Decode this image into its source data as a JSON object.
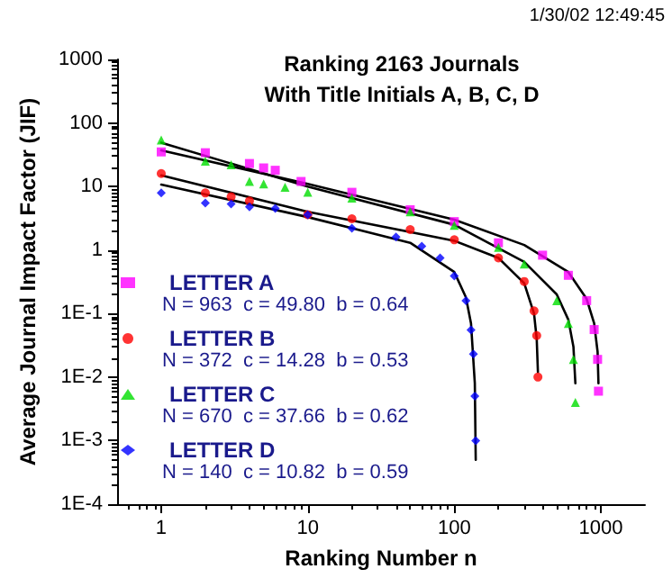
{
  "chart_data": {
    "type": "scatter",
    "title": "Ranking 2163 Journals\nWith Title Initials A, B, C, D",
    "xlabel": "Ranking Number n",
    "ylabel": "Average Journal Impact Factor (JIF)",
    "annotations": [
      "1/30/02 12:49:45",
      "N = 963  c = 49.80  b = 0.64",
      "N = 372  c = 14.28  b = 0.53",
      "N = 670  c = 37.66  b = 0.62",
      "N = 140  c = 10.82  b = 0.59"
    ],
    "log": "xy",
    "legend": "bottom left",
    "grid": false,
    "xlim": [
      0.5,
      2000
    ],
    "xticks": [
      1,
      10,
      100,
      1000
    ],
    "ylim": [
      0.0001,
      1000
    ],
    "yticks": [
      {
        "value": 0.0001,
        "label": "1E-4"
      },
      {
        "value": 0.001,
        "label": "1E-3"
      },
      {
        "value": 0.01,
        "label": "1E-2"
      },
      {
        "value": 0.1,
        "label": "1E-1"
      },
      1,
      10,
      100,
      1000
    ],
    "series": [
      {
        "name": "LETTER A",
        "color": "#ff00ff",
        "marker": "square",
        "x": [
          1,
          2,
          4,
          5,
          6,
          9,
          20,
          50,
          100,
          200,
          400,
          600,
          800,
          900,
          950,
          963
        ],
        "values": [
          35,
          34,
          23,
          19.6,
          18,
          12,
          8.1,
          4.3,
          2.8,
          1.3,
          0.83,
          0.4,
          0.16,
          0.056,
          0.019,
          0.006
        ]
      },
      {
        "name": "LETTER B",
        "color": "#ff0000",
        "marker": "circle",
        "x": [
          1,
          2,
          3,
          4,
          10,
          20,
          50,
          100,
          200,
          300,
          350,
          365,
          372
        ],
        "values": [
          16,
          7.9,
          6.9,
          5.9,
          3.6,
          3.1,
          2.1,
          1.45,
          0.75,
          0.32,
          0.11,
          0.045,
          0.01
        ]
      },
      {
        "name": "LETTER C",
        "color": "#00dd00",
        "marker": "triangle",
        "x": [
          1,
          2,
          3,
          4,
          5,
          7,
          10,
          20,
          50,
          100,
          200,
          300,
          500,
          600,
          650,
          670
        ],
        "values": [
          54,
          25,
          22,
          12,
          11,
          9.7,
          8.1,
          6.6,
          4,
          2.45,
          1.1,
          0.6,
          0.16,
          0.07,
          0.019,
          0.004
        ]
      },
      {
        "name": "LETTER D",
        "color": "#0000ff",
        "marker": "diamond",
        "x": [
          1,
          2,
          3,
          4,
          6,
          10,
          20,
          40,
          60,
          80,
          100,
          120,
          130,
          135,
          138,
          140
        ],
        "values": [
          7.9,
          5.5,
          5.3,
          4.8,
          4.5,
          3.6,
          2.2,
          1.6,
          1.15,
          0.75,
          0.39,
          0.16,
          0.055,
          0.023,
          0.005,
          0.001
        ]
      },
      {
        "type": "line",
        "color": "#000000",
        "marker": "none",
        "x": [
          1,
          10,
          100,
          300,
          600,
          800,
          900,
          950,
          963
        ],
        "values": [
          37,
          11,
          3,
          1.2,
          0.45,
          0.17,
          0.07,
          0.025,
          0.008
        ]
      },
      {
        "type": "line",
        "color": "#000000",
        "marker": "none",
        "x": [
          1,
          10,
          100,
          200,
          300,
          350,
          365,
          372
        ],
        "values": [
          15,
          4,
          1.4,
          0.75,
          0.3,
          0.1,
          0.04,
          0.012
        ]
      },
      {
        "type": "line",
        "color": "#000000",
        "marker": "none",
        "x": [
          1,
          10,
          100,
          300,
          500,
          600,
          650,
          670
        ],
        "values": [
          49,
          10,
          2.5,
          0.65,
          0.2,
          0.08,
          0.03,
          0.008
        ]
      },
      {
        "type": "line",
        "color": "#000000",
        "marker": "none",
        "x": [
          1,
          10,
          50,
          100,
          120,
          130,
          138,
          140
        ],
        "values": [
          10.7,
          3.3,
          1.3,
          0.45,
          0.18,
          0.07,
          0.008,
          0.0005
        ]
      }
    ]
  }
}
